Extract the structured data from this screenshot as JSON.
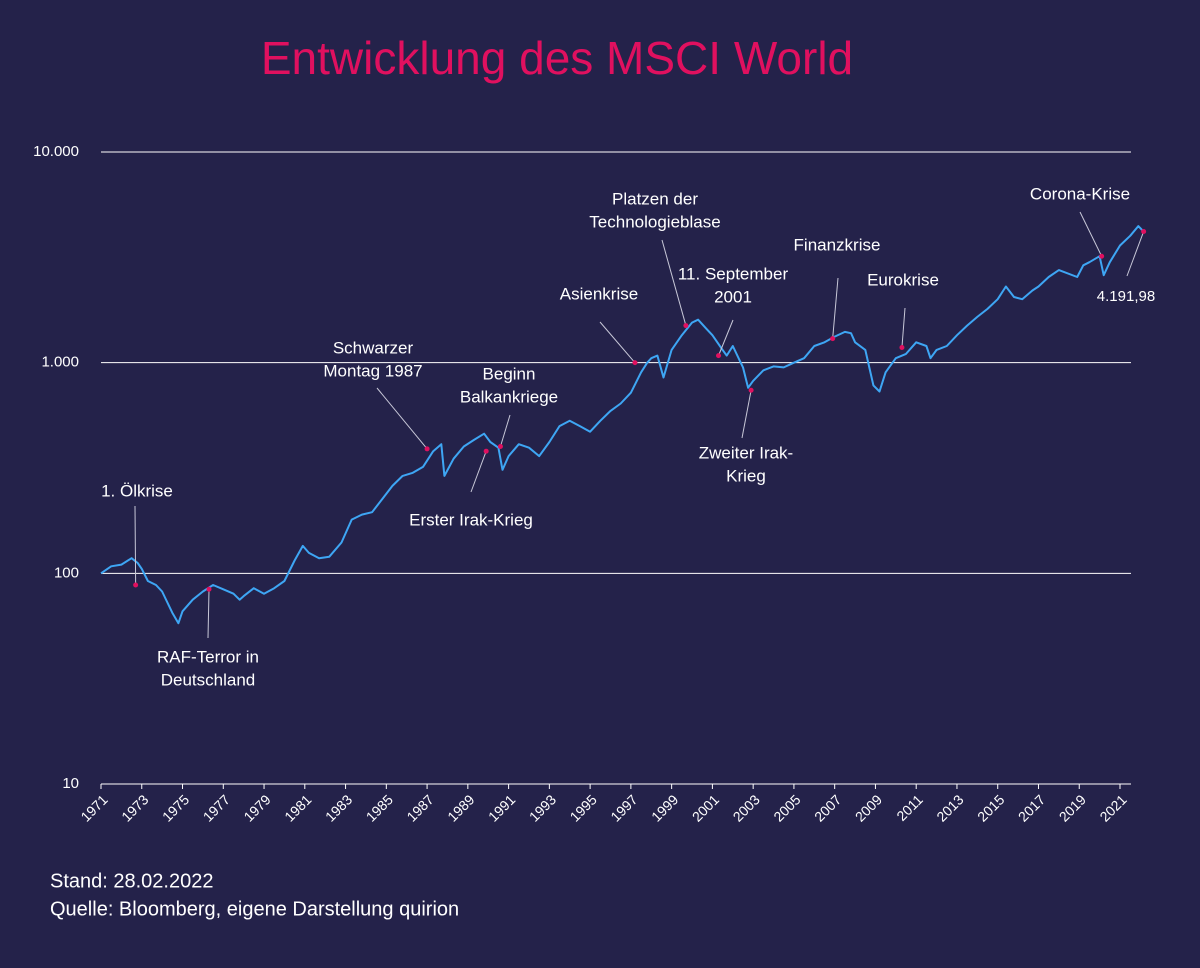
{
  "chart_data": {
    "type": "line",
    "title": "Entwicklung des MSCI World",
    "log_y": true,
    "grid": true,
    "color": "#3ea6f4",
    "ylim": [
      10,
      10000
    ],
    "yticks": [
      {
        "value": 10000,
        "label": "10.000"
      },
      {
        "value": 1000,
        "label": "1.000"
      },
      100,
      10
    ],
    "xlim": [
      1971,
      2022.3
    ],
    "xticks": [
      1971,
      1973,
      1975,
      1977,
      1979,
      1981,
      1983,
      1985,
      1987,
      1989,
      1991,
      1993,
      1995,
      1997,
      1999,
      2001,
      2003,
      2005,
      2007,
      2009,
      2011,
      2013,
      2015,
      2017,
      2019,
      2021
    ],
    "x": [
      1971.0,
      1971.5,
      1972.0,
      1972.5,
      1972.8,
      1973.0,
      1973.3,
      1973.7,
      1974.0,
      1974.5,
      1974.8,
      1975.0,
      1975.5,
      1976.0,
      1976.5,
      1977.0,
      1977.5,
      1977.8,
      1978.0,
      1978.5,
      1979.0,
      1979.5,
      1980.0,
      1980.5,
      1980.9,
      1981.2,
      1981.7,
      1982.2,
      1982.8,
      1983.3,
      1983.8,
      1984.3,
      1984.8,
      1985.3,
      1985.8,
      1986.3,
      1986.8,
      1987.3,
      1987.7,
      1987.85,
      1988.3,
      1988.8,
      1989.3,
      1989.8,
      1990.1,
      1990.5,
      1990.7,
      1991.0,
      1991.5,
      1992.0,
      1992.5,
      1993.0,
      1993.5,
      1994.0,
      1994.5,
      1995.0,
      1995.5,
      1996.0,
      1996.5,
      1997.0,
      1997.5,
      1997.8,
      1998.0,
      1998.3,
      1998.6,
      1999.0,
      1999.5,
      2000.0,
      2000.3,
      2000.7,
      2001.0,
      2001.5,
      2001.7,
      2002.0,
      2002.5,
      2002.75,
      2003.0,
      2003.5,
      2004.0,
      2004.5,
      2005.0,
      2005.5,
      2006.0,
      2006.5,
      2007.0,
      2007.5,
      2007.8,
      2008.0,
      2008.5,
      2008.9,
      2009.2,
      2009.5,
      2010.0,
      2010.5,
      2011.0,
      2011.5,
      2011.7,
      2012.0,
      2012.5,
      2013.0,
      2013.5,
      2014.0,
      2014.5,
      2015.0,
      2015.4,
      2015.8,
      2016.2,
      2016.7,
      2017.0,
      2017.5,
      2018.0,
      2018.9,
      2019.2,
      2019.5,
      2020.0,
      2020.2,
      2020.5,
      2021.0,
      2021.5,
      2021.9,
      2022.16
    ],
    "values": [
      100,
      108,
      110,
      118,
      112,
      105,
      92,
      88,
      82,
      65,
      58,
      66,
      75,
      82,
      88,
      84,
      80,
      75,
      78,
      85,
      80,
      85,
      92,
      115,
      135,
      125,
      118,
      120,
      140,
      180,
      190,
      195,
      225,
      260,
      290,
      300,
      320,
      380,
      410,
      290,
      350,
      400,
      430,
      460,
      420,
      395,
      310,
      360,
      410,
      395,
      360,
      420,
      500,
      530,
      500,
      470,
      530,
      590,
      640,
      720,
      900,
      1000,
      1050,
      1080,
      850,
      1150,
      1350,
      1550,
      1600,
      1450,
      1350,
      1150,
      1080,
      1200,
      950,
      760,
      820,
      920,
      960,
      950,
      1000,
      1050,
      1200,
      1250,
      1330,
      1400,
      1380,
      1250,
      1150,
      780,
      730,
      900,
      1050,
      1100,
      1250,
      1200,
      1050,
      1150,
      1200,
      1350,
      1500,
      1650,
      1800,
      2000,
      2300,
      2050,
      2000,
      2200,
      2300,
      2550,
      2750,
      2550,
      2900,
      3000,
      3200,
      2600,
      3000,
      3600,
      4000,
      4450,
      4191.98
    ],
    "annotations": [
      {
        "text": [
          "1. Ölkrise"
        ],
        "x": 1972.7,
        "y": 88
      },
      {
        "text": [
          "RAF-Terror in",
          "Deutschland"
        ],
        "x": 1976.3,
        "y": 84
      },
      {
        "text": [
          "Schwarzer",
          "Montag 1987"
        ],
        "x": 1987.0,
        "y": 390
      },
      {
        "text": [
          "Erster Irak-Krieg"
        ],
        "x": 1989.9,
        "y": 380
      },
      {
        "text": [
          "Beginn",
          "Balkankriege"
        ],
        "x": 1990.6,
        "y": 400
      },
      {
        "text": [
          "Asienkrise"
        ],
        "x": 1997.2,
        "y": 1000
      },
      {
        "text": [
          "Platzen der",
          "Technologieblase"
        ],
        "x": 1999.7,
        "y": 1500
      },
      {
        "text": [
          "11. September",
          "2001"
        ],
        "x": 2001.3,
        "y": 1080
      },
      {
        "text": [
          "Zweiter Irak-",
          "Krieg"
        ],
        "x": 2002.9,
        "y": 740
      },
      {
        "text": [
          "Finanzkrise"
        ],
        "x": 2006.9,
        "y": 1300
      },
      {
        "text": [
          "Eurokrise"
        ],
        "x": 2010.3,
        "y": 1180
      },
      {
        "text": [
          "Corona-Krise"
        ],
        "x": 2020.1,
        "y": 3200
      },
      {
        "text": [
          "4.191,98"
        ],
        "x": 2022.16,
        "y": 4191.98
      }
    ],
    "footnotes": [
      "Stand: 28.02.2022",
      "Quelle: Bloomberg, eigene Darstellung quirion"
    ]
  }
}
